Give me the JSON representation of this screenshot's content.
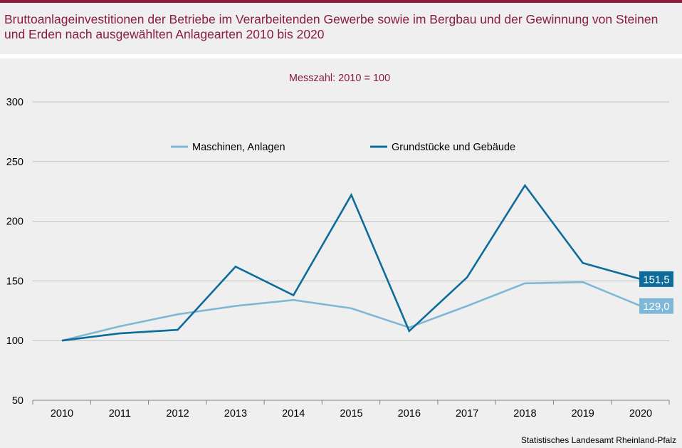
{
  "title": "Bruttoanlageinvestitionen der Betriebe im Verarbeitenden Gewerbe sowie im Bergbau und der Gewinnung von Steinen und Erden nach ausgewählten Anlagearten 2010 bis 2020",
  "subtitle": "Messzahl:  2010 = 100",
  "source": "Statistisches Landesamt  Rheinland-Pfalz",
  "colors": {
    "title": "#8b1c3b",
    "series_light": "#7fb8d6",
    "series_dark": "#0d6c9a",
    "grid": "#bfbfbf"
  },
  "chart_data": {
    "type": "line",
    "categories": [
      "2010",
      "2011",
      "2012",
      "2013",
      "2014",
      "2015",
      "2016",
      "2017",
      "2018",
      "2019",
      "2020"
    ],
    "ylim": [
      50,
      300
    ],
    "yticks": [
      50,
      100,
      150,
      200,
      250,
      300
    ],
    "grid": true,
    "legend_position": "top-center",
    "series": [
      {
        "name": "Maschinen, Anlagen",
        "values": [
          100,
          112,
          122,
          129,
          134,
          127,
          111,
          129,
          148,
          149,
          129.0
        ],
        "end_label": "129,0"
      },
      {
        "name": "Grundstücke und Gebäude",
        "values": [
          100,
          106,
          109,
          162,
          138,
          222,
          108,
          153,
          230,
          165,
          151.5
        ],
        "end_label": "151,5"
      }
    ]
  }
}
